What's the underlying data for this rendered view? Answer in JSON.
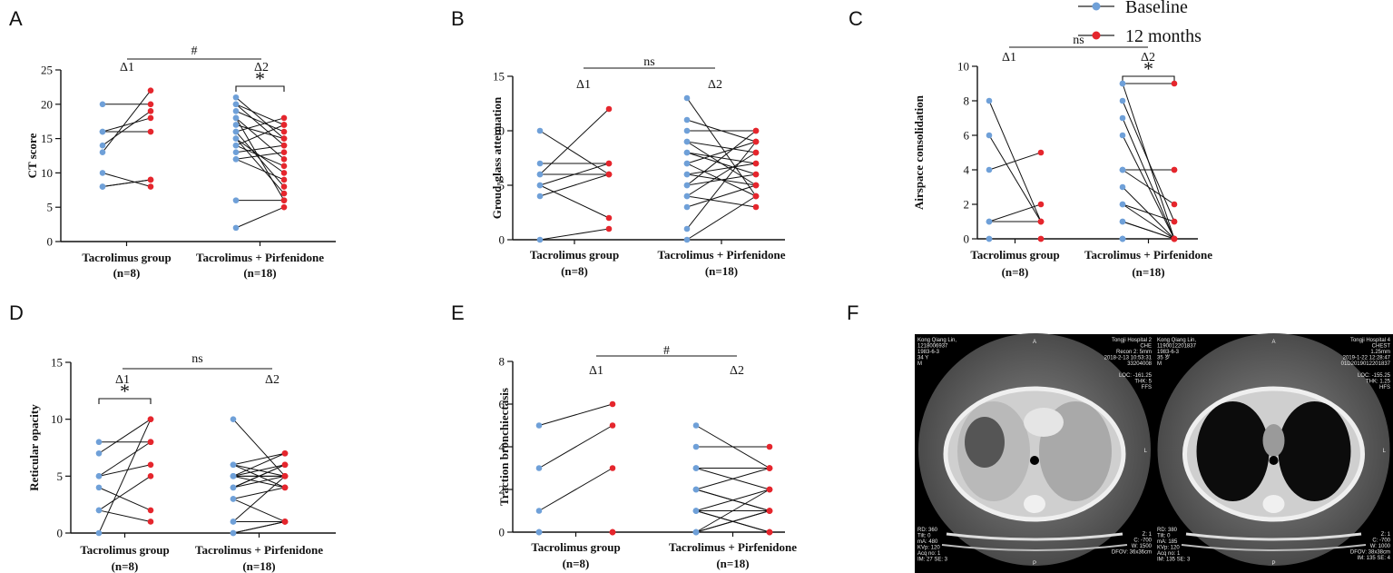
{
  "legend": {
    "baseline_label": "Baseline",
    "followup_label": "12 months",
    "baseline_color": "#6fa0d8",
    "followup_color": "#e5262d"
  },
  "chart_data": [
    {
      "panel": "A",
      "type": "scatter",
      "ylabel": "CT score",
      "ylim": [
        0,
        25
      ],
      "yticks": [
        0,
        5,
        10,
        15,
        20,
        25
      ],
      "categories": [
        "Tacrolimus group",
        "Tacrolimus + Pirfenidone"
      ],
      "counts": [
        "(n=8)",
        "(n=18)"
      ],
      "delta_labels": [
        "Δ1",
        "Δ2"
      ],
      "between": "#",
      "within_stars": [
        {
          "group": 1,
          "text": "*"
        }
      ],
      "series": [
        {
          "name": "Tacrolimus group",
          "baseline": [
            20,
            16,
            16,
            14,
            13,
            10,
            8,
            8
          ],
          "followup": [
            20,
            18,
            16,
            19,
            22,
            8,
            9,
            9
          ]
        },
        {
          "name": "Tacrolimus + Pirfenidone",
          "baseline": [
            21,
            20,
            19,
            18,
            17,
            16,
            15,
            14,
            14,
            13,
            12,
            12,
            6,
            2,
            15,
            16,
            18,
            20
          ],
          "followup": [
            15,
            14,
            16,
            12,
            15,
            18,
            10,
            17,
            11,
            14,
            9,
            13,
            6,
            5,
            7,
            8,
            6,
            17
          ]
        }
      ]
    },
    {
      "panel": "B",
      "type": "scatter",
      "ylabel": "Groud-glass attenuation",
      "ylim": [
        0,
        15
      ],
      "yticks": [
        0,
        5,
        10,
        15
      ],
      "categories": [
        "Tacrolimus group",
        "Tacrolimus + Pirfenidone"
      ],
      "counts": [
        "(n=8)",
        "(n=18)"
      ],
      "delta_labels": [
        "Δ1",
        "Δ2"
      ],
      "between": "ns",
      "within_stars": [],
      "series": [
        {
          "name": "Tacrolimus group",
          "baseline": [
            10,
            7,
            6,
            6,
            5,
            4,
            0,
            5
          ],
          "followup": [
            6,
            7,
            12,
            6,
            2,
            6,
            1,
            7
          ]
        },
        {
          "name": "Tacrolimus + Pirfenidone",
          "baseline": [
            13,
            11,
            10,
            9,
            9,
            8,
            7,
            7,
            6,
            6,
            5,
            5,
            4,
            4,
            3,
            1,
            0,
            8
          ],
          "followup": [
            4,
            9,
            10,
            8,
            5,
            7,
            9,
            4,
            5,
            7,
            6,
            10,
            3,
            8,
            5,
            9,
            4,
            6
          ]
        }
      ]
    },
    {
      "panel": "C",
      "type": "scatter",
      "ylabel": "Airspace consolidation",
      "ylim": [
        0,
        10
      ],
      "yticks": [
        0,
        2,
        4,
        6,
        8,
        10
      ],
      "categories": [
        "Tacrolimus group",
        "Tacrolimus + Pirfenidone"
      ],
      "counts": [
        "(n=8)",
        "(n=18)"
      ],
      "delta_labels": [
        "Δ1",
        "Δ2"
      ],
      "between": "ns",
      "within_stars": [
        {
          "group": 1,
          "text": "*"
        }
      ],
      "series": [
        {
          "name": "Tacrolimus group",
          "baseline": [
            8,
            6,
            4,
            1,
            1,
            0,
            0,
            1
          ],
          "followup": [
            1,
            1,
            5,
            2,
            1,
            0,
            0,
            1
          ]
        },
        {
          "name": "Tacrolimus + Pirfenidone",
          "baseline": [
            9,
            8,
            7,
            6,
            4,
            4,
            3,
            2,
            1,
            0,
            0,
            0,
            4,
            9,
            2,
            1,
            0,
            0
          ],
          "followup": [
            0,
            1,
            0,
            0,
            4,
            2,
            0,
            1,
            0,
            0,
            0,
            0,
            4,
            9,
            0,
            0,
            0,
            0
          ]
        }
      ]
    },
    {
      "panel": "D",
      "type": "scatter",
      "ylabel": "Reticular opacity",
      "ylim": [
        0,
        15
      ],
      "yticks": [
        0,
        5,
        10,
        15
      ],
      "categories": [
        "Tacrolimus group",
        "Tacrolimus + Pirfenidone"
      ],
      "counts": [
        "(n=8)",
        "(n=18)"
      ],
      "delta_labels": [
        "Δ1",
        "Δ2"
      ],
      "between": "ns",
      "within_stars": [
        {
          "group": 0,
          "text": "*"
        }
      ],
      "series": [
        {
          "name": "Tacrolimus group",
          "baseline": [
            8,
            7,
            5,
            4,
            2,
            2,
            0,
            5
          ],
          "followup": [
            8,
            10,
            6,
            2,
            1,
            5,
            10,
            8
          ]
        },
        {
          "name": "Tacrolimus + Pirfenidone",
          "baseline": [
            10,
            6,
            6,
            5,
            5,
            5,
            4,
            4,
            3,
            3,
            1,
            1,
            0,
            6,
            5,
            4,
            0,
            5
          ],
          "followup": [
            5,
            7,
            5,
            6,
            4,
            5,
            5,
            6,
            1,
            4,
            1,
            5,
            1,
            4,
            5,
            6,
            1,
            7
          ]
        }
      ]
    },
    {
      "panel": "E",
      "type": "scatter",
      "ylabel": "Traction bronchiectasis",
      "ylim": [
        0,
        8
      ],
      "yticks": [
        0,
        2,
        4,
        6,
        8
      ],
      "categories": [
        "Tacrolimus group",
        "Tacrolimus + Pirfenidone"
      ],
      "counts": [
        "(n=8)",
        "(n=18)"
      ],
      "delta_labels": [
        "Δ1",
        "Δ2"
      ],
      "between": "#",
      "within_stars": [],
      "series": [
        {
          "name": "Tacrolimus group",
          "baseline": [
            5,
            3,
            1,
            0,
            0,
            0,
            0,
            0
          ],
          "followup": [
            6,
            5,
            3,
            0,
            0,
            0,
            0,
            0
          ]
        },
        {
          "name": "Tacrolimus + Pirfenidone",
          "baseline": [
            5,
            4,
            3,
            3,
            2,
            2,
            1,
            1,
            1,
            0,
            0,
            0,
            0,
            0,
            0,
            1,
            2,
            3
          ],
          "followup": [
            3,
            4,
            3,
            2,
            1,
            3,
            2,
            1,
            0,
            0,
            1,
            2,
            0,
            1,
            0,
            0,
            1,
            3
          ]
        }
      ]
    }
  ],
  "panel_f": {
    "label": "F",
    "left_scan": {
      "top_left": [
        "Kong Qiang Lin,",
        "1218006937",
        "1983-6-3",
        "34 Y",
        "M"
      ],
      "top_right": [
        "Tongji Hospital 2",
        "CHE",
        "Recon 2: 5mm",
        "2018-2-13 10:53:31",
        "33204008",
        "",
        "LOC: -161.25",
        "THK: 5",
        "FFS"
      ],
      "bottom_left": [
        "RD: 360",
        "Tilt: 0",
        "mA: 480",
        "KVp: 120",
        "Acq no: 1",
        "IM: 27 SE: 3"
      ],
      "bottom_right": [
        "Z: 1",
        "C: -700",
        "W: 1500",
        "DFOV: 36x36cm"
      ],
      "marker_top": "A",
      "marker_side": "L",
      "marker_bottom": "P"
    },
    "right_scan": {
      "top_left": [
        "Kong Qiang Lin,",
        "1190012201837",
        "1983-6-3",
        "35 岁",
        "M"
      ],
      "top_right": [
        "Tongji Hospital 4",
        "CHEST",
        "1.25mm",
        "2019-1-22 12:28:47",
        "01D2019012201837",
        "",
        "LOC: -155.25",
        "THK: 1.25",
        "HFS"
      ],
      "bottom_left": [
        "RD: 380",
        "Tilt: 0",
        "mA: 185",
        "KVp: 120",
        "Acq no: 1",
        "IM: 135 SE: 3"
      ],
      "bottom_right": [
        "Z: 1",
        "C: -700",
        "W: 1000",
        "DFOV: 38x38cm",
        "IM: 135 SE: 4"
      ],
      "marker_top": "A",
      "marker_side": "L",
      "marker_bottom": "P"
    }
  }
}
